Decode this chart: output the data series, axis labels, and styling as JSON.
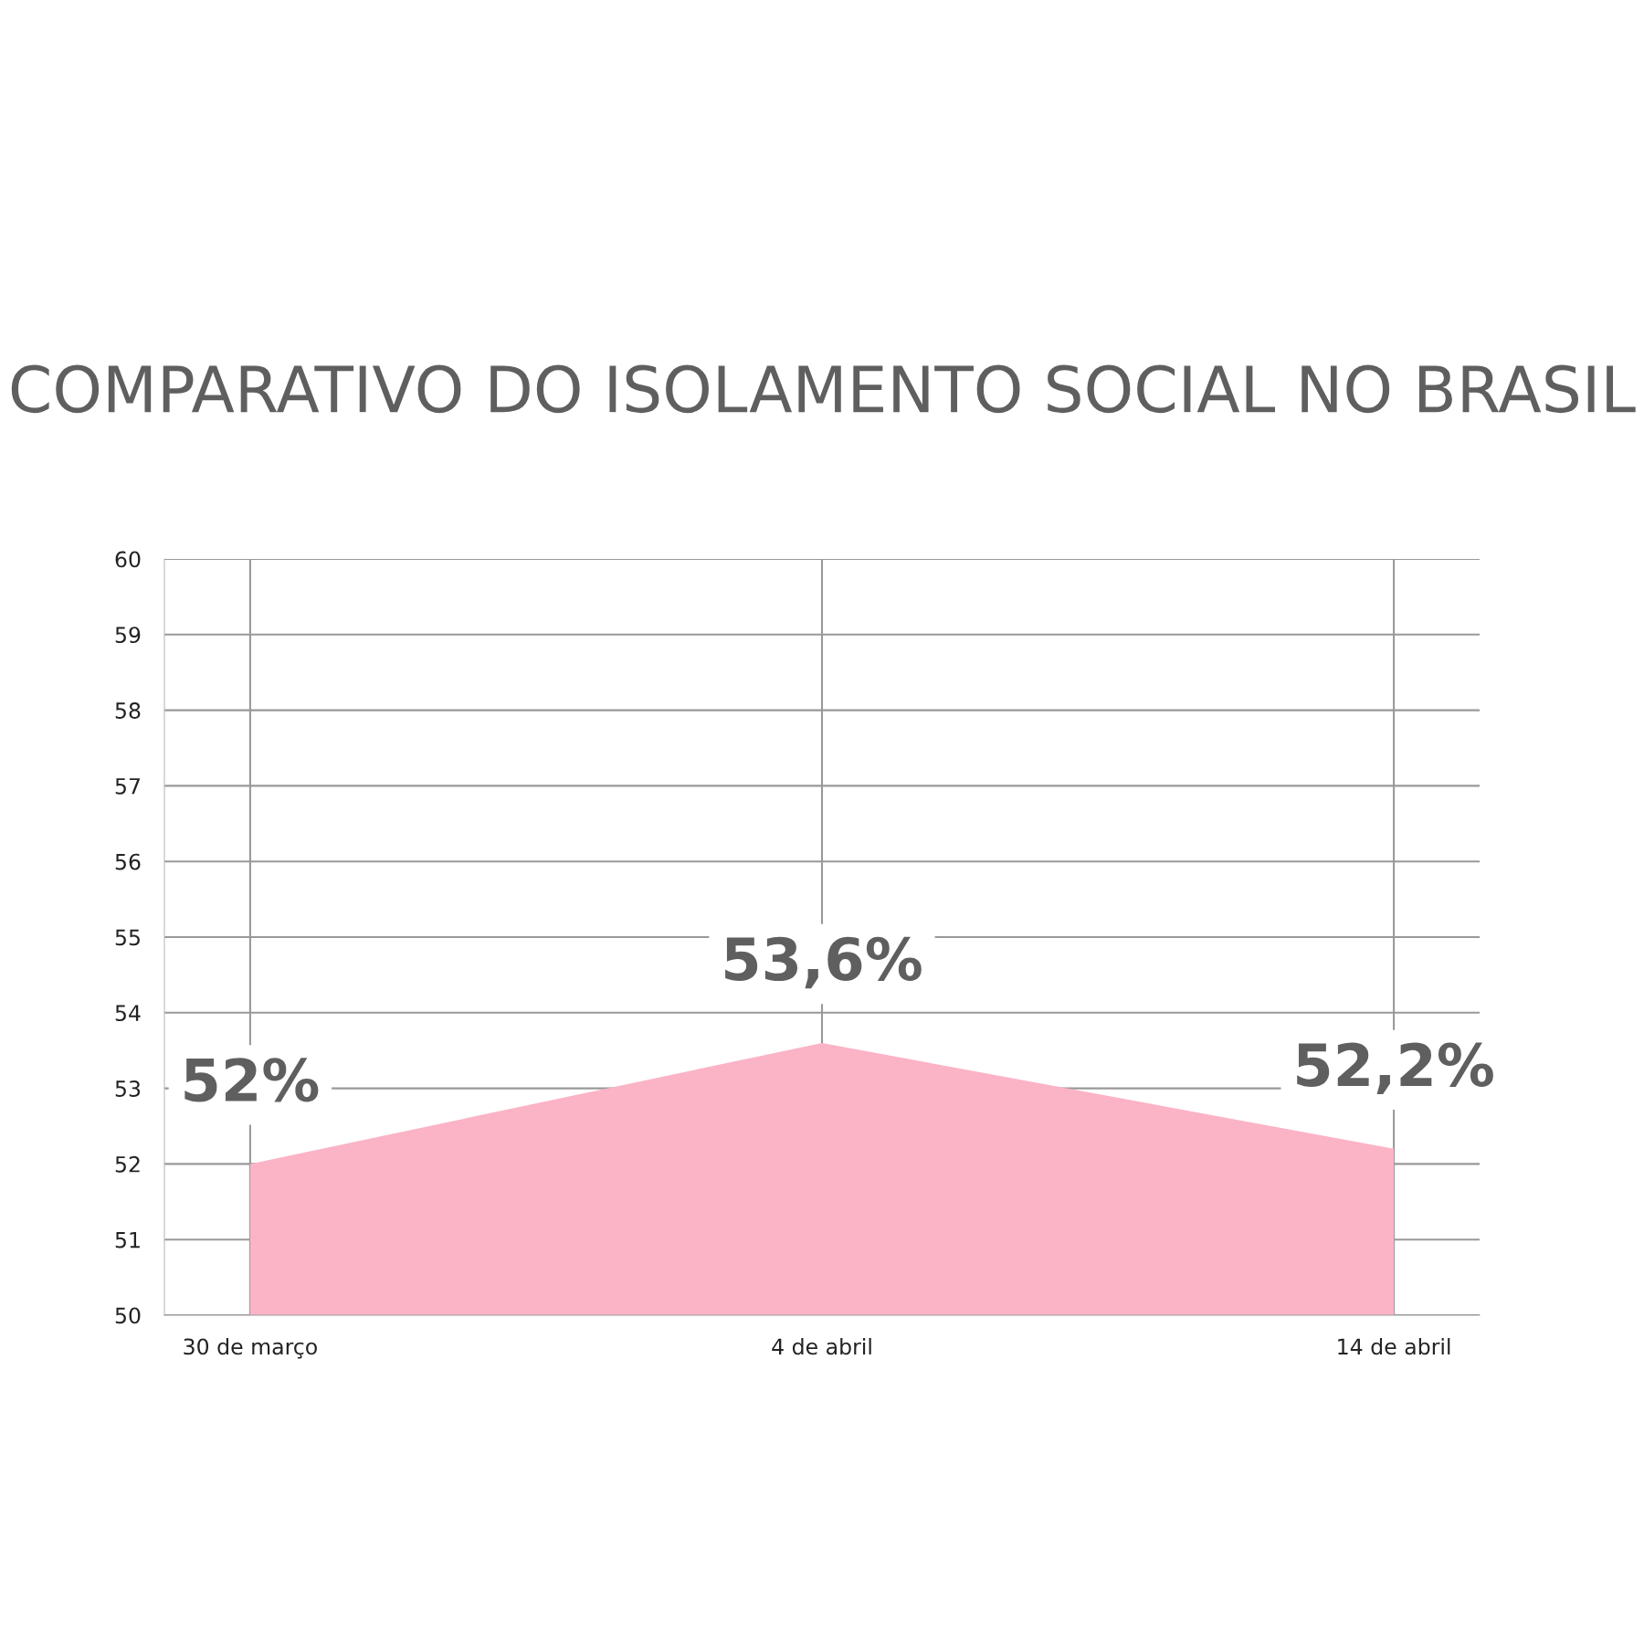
{
  "chart_data": {
    "type": "area",
    "title": "COMPARATIVO DO ISOLAMENTO SOCIAL NO BRASIL",
    "categories": [
      "30 de março",
      "4 de abril",
      "14 de abril"
    ],
    "values": [
      52,
      53.6,
      52.2
    ],
    "color": "#fbb3c6",
    "value_labels": [
      "52%",
      "53,6%",
      "52,2%"
    ],
    "ylim": [
      50,
      60
    ],
    "yticks": [
      50,
      51,
      52,
      53,
      54,
      55,
      56,
      57,
      58,
      59,
      60
    ],
    "grid": true
  }
}
